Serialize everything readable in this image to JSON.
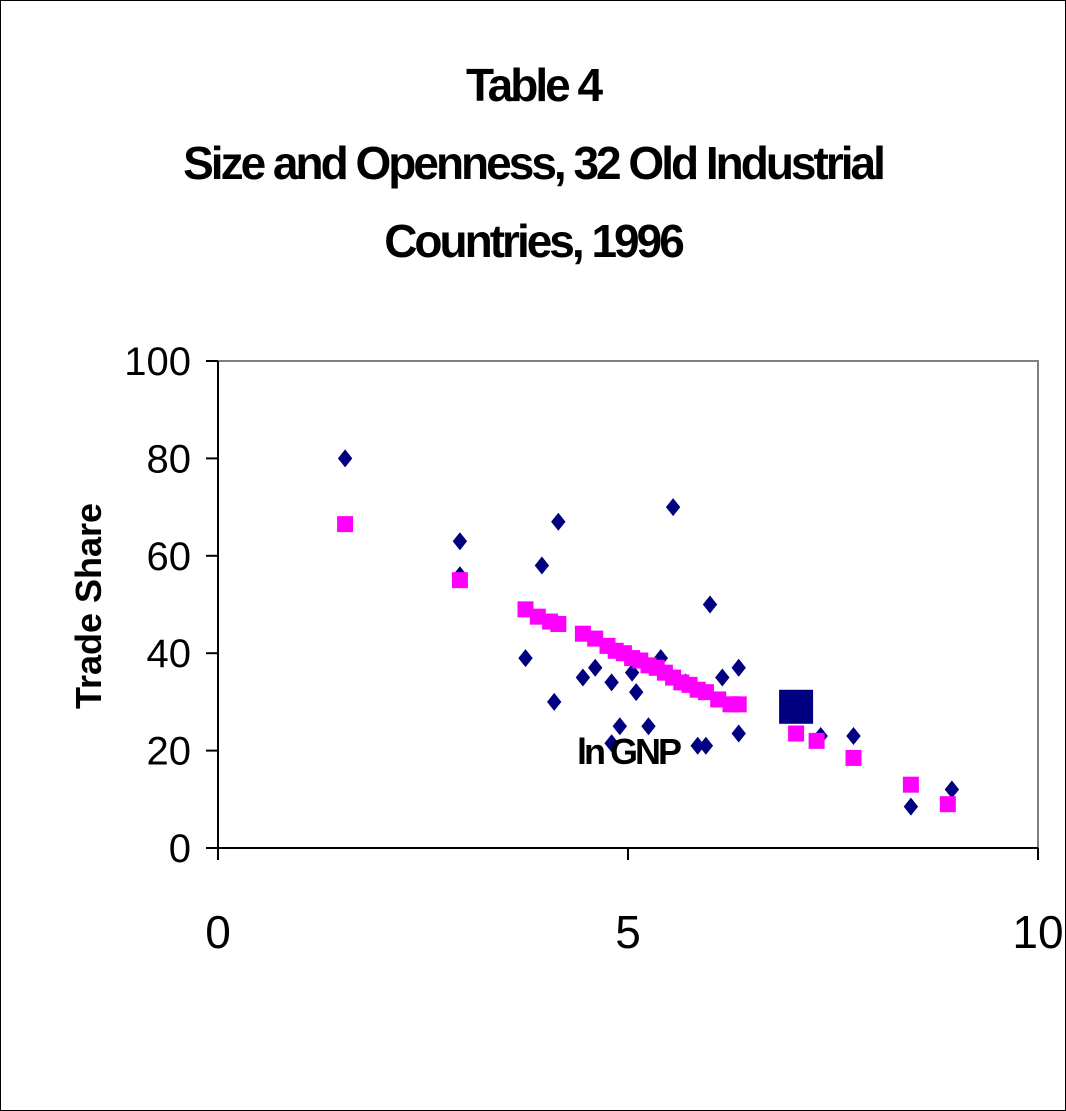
{
  "chart_data": {
    "type": "scatter",
    "title_lines": [
      "Table 4",
      "Size and Openness, 32 Old Industrial",
      "Countries, 1996"
    ],
    "xlabel": "ln GNP",
    "ylabel": "Trade Share",
    "xlim": [
      0,
      10
    ],
    "ylim": [
      0,
      100
    ],
    "xticks": [
      0,
      5,
      10
    ],
    "yticks": [
      0,
      20,
      40,
      60,
      80,
      100
    ],
    "grid": false,
    "legend": "none",
    "colors": {
      "actual": "#000080",
      "fitted": "#ff00ff",
      "highlight": "#000080"
    },
    "series": [
      {
        "marker": "diamond",
        "x": [
          1.55,
          2.95,
          2.95,
          3.75,
          3.95,
          4.1,
          4.15,
          4.45,
          4.6,
          4.8,
          4.8,
          4.9,
          5.05,
          5.1,
          5.25,
          5.4,
          5.55,
          5.7,
          5.85,
          5.95,
          6.0,
          6.15,
          6.35,
          6.35,
          7.35,
          7.75,
          8.45,
          8.95
        ],
        "y": [
          80,
          63,
          56,
          39,
          58,
          30,
          67,
          35,
          37,
          34,
          21.5,
          25,
          36,
          32,
          25,
          39,
          70,
          34,
          21,
          21,
          50,
          35,
          23.5,
          37,
          23,
          23,
          8.5,
          12
        ]
      },
      {
        "marker": "square",
        "x": [
          1.55,
          2.95,
          3.75,
          3.9,
          4.05,
          4.15,
          4.45,
          4.6,
          4.75,
          4.85,
          4.95,
          5.05,
          5.15,
          5.25,
          5.35,
          5.45,
          5.55,
          5.65,
          5.75,
          5.85,
          5.95,
          6.1,
          6.25,
          6.35,
          7.05,
          7.3,
          7.75,
          8.45,
          8.9
        ],
        "y": [
          66.5,
          55,
          49,
          47.5,
          46.5,
          46,
          44,
          43,
          41.5,
          40.5,
          40,
          39,
          38.5,
          37.5,
          37,
          36,
          35,
          34,
          33.5,
          32.5,
          32,
          30.5,
          29.5,
          29.5,
          23.5,
          22,
          18.5,
          13,
          9
        ]
      },
      {
        "marker": "big-square",
        "x": [
          7.05
        ],
        "y": [
          29
        ]
      }
    ]
  }
}
